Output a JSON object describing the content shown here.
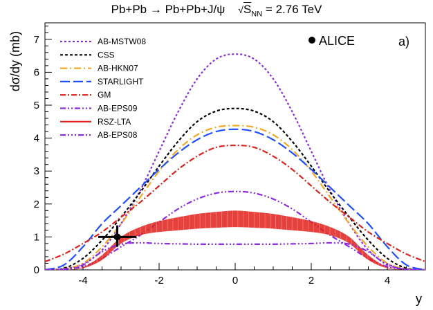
{
  "chart_data": {
    "type": "line",
    "title_main": "Pb+Pb → Pb+Pb+J/ψ",
    "title_energy_prefix": "√",
    "title_energy_sub": "S",
    "title_energy_subsub": "NN",
    "title_energy_value": "= 2.76 TeV",
    "panel_label": "a)",
    "xlabel": "y",
    "ylabel": "dσ/dy (mb)",
    "xlim": [
      -5,
      5
    ],
    "ylim": [
      0,
      7.5
    ],
    "xticks": [
      "-4",
      "-2",
      "0",
      "2",
      "4"
    ],
    "yticks": [
      "0",
      "1",
      "2",
      "3",
      "4",
      "5",
      "6",
      "7"
    ],
    "xtick_values": [
      -4,
      -2,
      0,
      2,
      4
    ],
    "ytick_values": [
      0,
      1,
      2,
      3,
      4,
      5,
      6,
      7
    ],
    "legend": "top-left",
    "series": [
      {
        "name": "AB-MSTW08",
        "color": "#8a2be2",
        "dash": "3,3",
        "x": [
          -5,
          -4.5,
          -4,
          -3.5,
          -3,
          -2.5,
          -2,
          -1.5,
          -1,
          -0.5,
          0,
          0.5,
          1,
          1.5,
          2,
          2.5,
          3,
          3.5,
          4,
          4.5,
          5
        ],
        "y": [
          0.0,
          0.03,
          0.18,
          0.6,
          1.4,
          2.4,
          3.6,
          4.8,
          5.8,
          6.4,
          6.55,
          6.4,
          5.8,
          4.8,
          3.6,
          2.4,
          1.4,
          0.6,
          0.18,
          0.03,
          0.0
        ]
      },
      {
        "name": "CSS",
        "color": "#000000",
        "dash": "4,3",
        "x": [
          -5,
          -4.5,
          -4,
          -3.5,
          -3,
          -2.5,
          -2,
          -1.5,
          -1,
          -0.5,
          0,
          0.5,
          1,
          1.5,
          2,
          2.5,
          3,
          3.5,
          4,
          4.5,
          5
        ],
        "y": [
          0.0,
          0.05,
          0.35,
          0.9,
          1.6,
          2.35,
          3.15,
          3.9,
          4.5,
          4.82,
          4.9,
          4.82,
          4.5,
          3.9,
          3.15,
          2.35,
          1.6,
          0.9,
          0.35,
          0.05,
          0.0
        ]
      },
      {
        "name": "AB-HKN07",
        "color": "#f5a623",
        "dash": "10,4,2,4",
        "x": [
          -5,
          -4.5,
          -4,
          -3.5,
          -3,
          -2.5,
          -2,
          -1.5,
          -1,
          -0.5,
          0,
          0.5,
          1,
          1.5,
          2,
          2.5,
          3,
          3.5,
          4,
          4.5,
          5
        ],
        "y": [
          0.0,
          0.03,
          0.2,
          0.7,
          1.4,
          2.2,
          3.0,
          3.65,
          4.1,
          4.33,
          4.38,
          4.33,
          4.1,
          3.65,
          3.0,
          2.2,
          1.4,
          0.7,
          0.2,
          0.03,
          0.0
        ]
      },
      {
        "name": "STARLIGHT",
        "color": "#1f4fff",
        "dash": "14,5",
        "x": [
          -5,
          -4.5,
          -4,
          -3.5,
          -3,
          -2.5,
          -2,
          -1.5,
          -1,
          -0.5,
          0,
          0.5,
          1,
          1.5,
          2,
          2.5,
          3,
          3.5,
          4,
          4.5,
          5
        ],
        "y": [
          0.0,
          0.15,
          0.7,
          1.4,
          1.95,
          2.5,
          3.05,
          3.55,
          3.95,
          4.2,
          4.27,
          4.2,
          3.95,
          3.55,
          3.05,
          2.5,
          1.95,
          1.4,
          0.7,
          0.15,
          0.0
        ]
      },
      {
        "name": "GM",
        "color": "#e0201b",
        "dash": "8,3,2,3",
        "x": [
          -5,
          -4.5,
          -4,
          -3.5,
          -3,
          -2.5,
          -2,
          -1.5,
          -1,
          -0.5,
          0,
          0.5,
          1,
          1.5,
          2,
          2.5,
          3,
          3.5,
          4,
          4.5,
          5
        ],
        "y": [
          0.25,
          0.48,
          0.8,
          1.15,
          1.6,
          2.05,
          2.55,
          3.05,
          3.45,
          3.72,
          3.78,
          3.72,
          3.45,
          3.05,
          2.55,
          2.05,
          1.6,
          1.15,
          0.8,
          0.48,
          0.25
        ]
      },
      {
        "name": "AB-EPS09",
        "color": "#8a2be2",
        "dash": "8,3,2,3,2,3",
        "x": [
          -5,
          -4.5,
          -4,
          -3.5,
          -3,
          -2.5,
          -2,
          -1.5,
          -1,
          -0.5,
          0,
          0.5,
          1,
          1.5,
          2,
          2.5,
          3,
          3.5,
          4,
          4.5,
          5
        ],
        "y": [
          0.0,
          0.02,
          0.1,
          0.35,
          0.7,
          1.05,
          1.45,
          1.85,
          2.15,
          2.33,
          2.38,
          2.33,
          2.15,
          1.85,
          1.45,
          1.05,
          0.7,
          0.35,
          0.1,
          0.02,
          0.0
        ]
      },
      {
        "name": "RSZ-LTA",
        "color": "#e0201b",
        "dash": "",
        "band": true,
        "x": [
          -4.5,
          -4,
          -3.5,
          -3,
          -2.5,
          -2,
          -1.5,
          -1,
          -0.5,
          0,
          0.5,
          1,
          1.5,
          2,
          2.5,
          3,
          3.5,
          4,
          4.5
        ],
        "y_low": [
          0.0,
          0.05,
          0.3,
          0.8,
          1.05,
          1.15,
          1.2,
          1.25,
          1.28,
          1.3,
          1.28,
          1.25,
          1.2,
          1.15,
          1.05,
          0.8,
          0.3,
          0.05,
          0.0
        ],
        "y_high": [
          0.0,
          0.08,
          0.45,
          1.0,
          1.3,
          1.48,
          1.6,
          1.7,
          1.76,
          1.8,
          1.76,
          1.7,
          1.6,
          1.48,
          1.3,
          1.0,
          0.45,
          0.08,
          0.0
        ]
      },
      {
        "name": "AB-EPS08",
        "color": "#8a2be2",
        "dash": "8,3,2,3,2,3,2,3",
        "x": [
          -5,
          -4.5,
          -4,
          -3.5,
          -3,
          -2.5,
          -2,
          -1.5,
          -1,
          -0.5,
          0,
          0.5,
          1,
          1.5,
          2,
          2.5,
          3,
          3.5,
          4,
          4.5,
          5
        ],
        "y": [
          0.0,
          0.02,
          0.15,
          0.55,
          0.78,
          0.82,
          0.8,
          0.79,
          0.78,
          0.78,
          0.78,
          0.78,
          0.78,
          0.79,
          0.8,
          0.82,
          0.78,
          0.55,
          0.15,
          0.02,
          0.0
        ]
      }
    ],
    "data_points": [
      {
        "name": "ALICE",
        "x": -3.1,
        "y": 1.0,
        "xerr": 0.5,
        "yerr_low": 0.3,
        "yerr_high": 0.35
      }
    ]
  }
}
